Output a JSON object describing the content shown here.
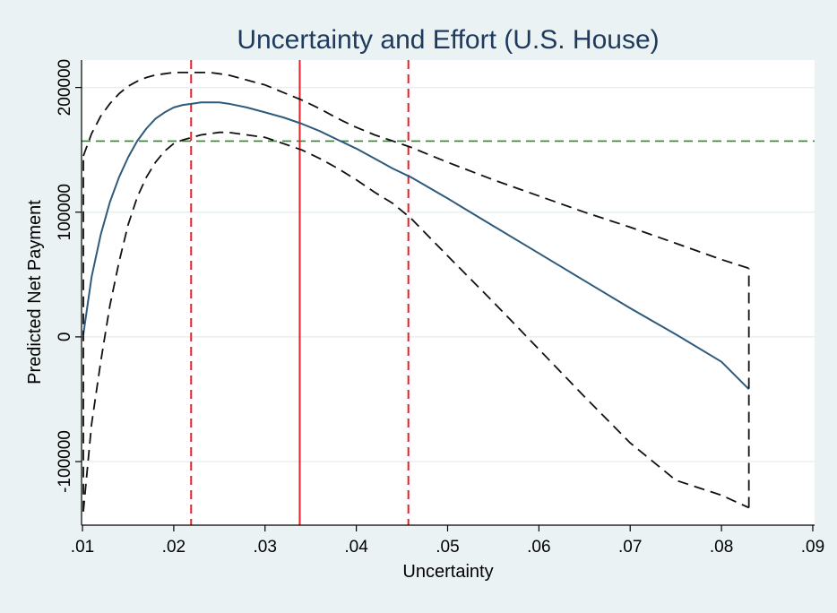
{
  "chart_data": {
    "type": "line",
    "title": "Uncertainty and Effort (U.S. House)",
    "xlabel": "Uncertainty",
    "ylabel": "Predicted Net Payment",
    "xlim": [
      0.0099,
      0.0902
    ],
    "ylim": [
      -151000,
      222000
    ],
    "x_ticks": [
      0.01,
      0.02,
      0.03,
      0.04,
      0.05,
      0.06,
      0.07,
      0.08,
      0.09
    ],
    "x_tick_labels": [
      ".01",
      ".02",
      ".03",
      ".04",
      ".05",
      ".06",
      ".07",
      ".08",
      ".09"
    ],
    "y_ticks": [
      -100000,
      0,
      100000,
      200000
    ],
    "y_tick_labels": [
      "-100000",
      "0",
      "100000",
      "200000"
    ],
    "grid": true,
    "legend": "none",
    "series": [
      {
        "style": "solid",
        "color": "#2e5a7c",
        "x": [
          0.0101,
          0.011,
          0.012,
          0.013,
          0.014,
          0.015,
          0.016,
          0.017,
          0.018,
          0.019,
          0.02,
          0.021,
          0.022,
          0.023,
          0.024,
          0.025,
          0.026,
          0.028,
          0.03,
          0.032,
          0.034,
          0.036,
          0.038,
          0.04,
          0.042,
          0.044,
          0.046,
          0.05,
          0.055,
          0.06,
          0.065,
          0.07,
          0.075,
          0.08,
          0.083
        ],
        "y": [
          2000,
          48000,
          82000,
          108000,
          128000,
          144000,
          157000,
          167000,
          175000,
          180000,
          184000,
          186000,
          187000,
          188000,
          188000,
          188000,
          187000,
          184000,
          180000,
          176000,
          171000,
          165000,
          158000,
          151000,
          143000,
          135000,
          128000,
          111000,
          89000,
          67000,
          45000,
          23000,
          2000,
          -20000,
          -42000
        ]
      },
      {
        "style": "dashed",
        "color": "#111111",
        "x": [
          0.0101,
          0.011,
          0.012,
          0.013,
          0.014,
          0.015,
          0.016,
          0.017,
          0.018,
          0.019,
          0.02,
          0.021,
          0.022,
          0.023,
          0.024,
          0.025,
          0.026,
          0.028,
          0.03,
          0.032,
          0.034,
          0.036,
          0.038,
          0.04,
          0.042,
          0.044,
          0.046,
          0.05,
          0.055,
          0.06,
          0.065,
          0.07,
          0.075,
          0.08,
          0.083
        ],
        "y": [
          145000,
          163000,
          177000,
          187000,
          195000,
          201000,
          205000,
          208000,
          210000,
          211000,
          212000,
          212000,
          212000,
          212000,
          212000,
          211000,
          210000,
          206000,
          202000,
          196000,
          190000,
          183000,
          175000,
          168000,
          162000,
          157000,
          152000,
          140000,
          126000,
          113000,
          100000,
          88000,
          75000,
          62000,
          55000
        ]
      },
      {
        "style": "dashed",
        "color": "#111111",
        "x": [
          0.0101,
          0.011,
          0.012,
          0.013,
          0.014,
          0.015,
          0.016,
          0.017,
          0.018,
          0.019,
          0.02,
          0.021,
          0.022,
          0.023,
          0.024,
          0.025,
          0.026,
          0.028,
          0.03,
          0.032,
          0.034,
          0.036,
          0.038,
          0.04,
          0.042,
          0.044,
          0.046,
          0.05,
          0.055,
          0.06,
          0.065,
          0.07,
          0.075,
          0.08,
          0.083
        ],
        "y": [
          -140000,
          -70000,
          -20000,
          25000,
          60000,
          90000,
          112000,
          128000,
          140000,
          149000,
          155000,
          158000,
          160000,
          162000,
          163000,
          164000,
          164000,
          162000,
          160000,
          155000,
          150000,
          143000,
          135000,
          126000,
          116000,
          107000,
          95000,
          65000,
          28000,
          -10000,
          -48000,
          -85000,
          -115000,
          -127000,
          -137000
        ]
      }
    ],
    "vertical_lines": [
      {
        "x": 0.0219,
        "style": "dashed",
        "color": "#e8202a"
      },
      {
        "x": 0.0338,
        "style": "solid",
        "color": "#e8202a"
      },
      {
        "x": 0.0457,
        "style": "dashed",
        "color": "#e8202a"
      }
    ],
    "horizontal_lines": [
      {
        "y": 157000,
        "style": "dashed",
        "color": "#2a8a2a"
      }
    ],
    "ci_end_connectors": [
      {
        "x": 0.0101,
        "y_low": -140000,
        "y_high": 145000
      },
      {
        "x": 0.083,
        "y_low": -137000,
        "y_high": 55000
      }
    ],
    "colors": {
      "background": "#eaf2f3",
      "plot_background": "#ffffff",
      "title": "#1e3a5f",
      "grid": "#e8eff0"
    }
  }
}
